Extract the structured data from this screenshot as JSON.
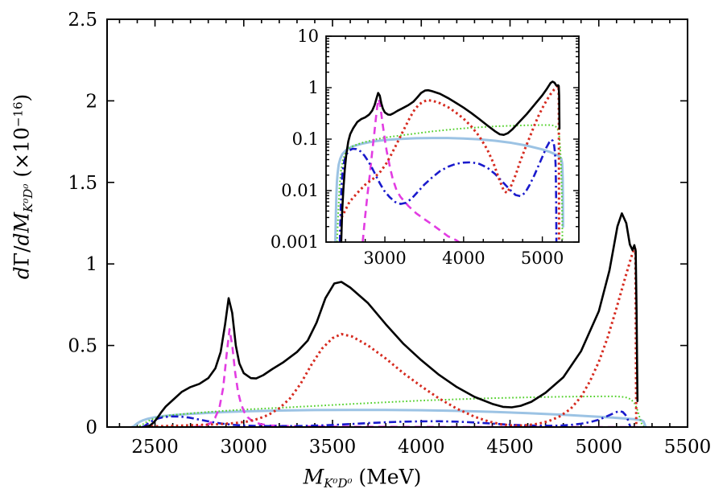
{
  "figure": {
    "background": "#ffffff"
  },
  "labels": {
    "y": {
      "p1": "d",
      "p2": "Γ/",
      "p3": "dM",
      "sub": "K⁰D⁰",
      "p4": " (×10",
      "exp": "−16",
      "p5": ")"
    },
    "x": {
      "p1": "M",
      "sub": "K⁰D⁰",
      "p2": " (MeV)"
    }
  },
  "chart_data": {
    "type": "line",
    "title": "",
    "xlabel": "M_{K0 D0} (MeV)",
    "ylabel": "dGamma/dM_{K0 D0} (x10^-16)",
    "grid": false,
    "legend": "none",
    "main_axis": {
      "xmin": 2230,
      "xmax": 5500,
      "ymin": 0,
      "ymax": 2.5,
      "yscale": "linear",
      "x_minor_step": 100,
      "xticks": [
        {
          "v": 2500,
          "label": "2500"
        },
        {
          "v": 3000,
          "label": "3000"
        },
        {
          "v": 3500,
          "label": "3500"
        },
        {
          "v": 4000,
          "label": "4000"
        },
        {
          "v": 4500,
          "label": "4500"
        },
        {
          "v": 5000,
          "label": "5000"
        },
        {
          "v": 5500,
          "label": "5500"
        }
      ],
      "yticks": [
        {
          "v": 0,
          "label": "0"
        },
        {
          "v": 0.5,
          "label": "0.5"
        },
        {
          "v": 1,
          "label": "1"
        },
        {
          "v": 1.5,
          "label": "1.5"
        },
        {
          "v": 2,
          "label": "2"
        },
        {
          "v": 2.5,
          "label": "2.5"
        }
      ]
    },
    "inset_axis": {
      "xmin": 2253,
      "xmax": 5464,
      "ymin": 0.001,
      "ymax": 10,
      "yscale": "log",
      "x_minor_step": 250,
      "xticks": [
        {
          "v": 3000,
          "label": "3000"
        },
        {
          "v": 4000,
          "label": "4000"
        },
        {
          "v": 5000,
          "label": "5000"
        }
      ],
      "yticks": [
        {
          "v": 0.001,
          "label": "0.001"
        },
        {
          "v": 0.01,
          "label": "0.01"
        },
        {
          "v": 0.1,
          "label": "0.1"
        },
        {
          "v": 1,
          "label": "1"
        },
        {
          "v": 10,
          "label": "10"
        }
      ]
    },
    "series": [
      {
        "name": "lightblue-solid",
        "color": "#9cc3e4",
        "style": "solid",
        "width": 3.0,
        "points": [
          [
            2371,
            0.001
          ],
          [
            2377,
            0.003
          ],
          [
            2384,
            0.008
          ],
          [
            2391,
            0.015
          ],
          [
            2400,
            0.022
          ],
          [
            2414,
            0.032
          ],
          [
            2434,
            0.042
          ],
          [
            2460,
            0.051
          ],
          [
            2500,
            0.06
          ],
          [
            2550,
            0.068
          ],
          [
            2600,
            0.073
          ],
          [
            2700,
            0.081
          ],
          [
            2800,
            0.087
          ],
          [
            2900,
            0.092
          ],
          [
            3000,
            0.096
          ],
          [
            3200,
            0.101
          ],
          [
            3400,
            0.104
          ],
          [
            3600,
            0.105
          ],
          [
            3800,
            0.105
          ],
          [
            4000,
            0.103
          ],
          [
            4200,
            0.099
          ],
          [
            4400,
            0.093
          ],
          [
            4600,
            0.085
          ],
          [
            4800,
            0.075
          ],
          [
            5000,
            0.063
          ],
          [
            5100,
            0.056
          ],
          [
            5200,
            0.048
          ],
          [
            5240,
            0.042
          ],
          [
            5252,
            0.034
          ],
          [
            5258,
            0.018
          ],
          [
            5262,
            0.007
          ],
          [
            5264,
            0.002
          ]
        ]
      },
      {
        "name": "green-dotted",
        "color": "#50d028",
        "style": "finedot",
        "width": 2.0,
        "points": [
          [
            2393,
            0.001
          ],
          [
            2408,
            0.004
          ],
          [
            2424,
            0.012
          ],
          [
            2444,
            0.025
          ],
          [
            2468,
            0.04
          ],
          [
            2500,
            0.054
          ],
          [
            2550,
            0.066
          ],
          [
            2600,
            0.074
          ],
          [
            2700,
            0.084
          ],
          [
            2800,
            0.092
          ],
          [
            2900,
            0.1
          ],
          [
            3000,
            0.107
          ],
          [
            3200,
            0.118
          ],
          [
            3400,
            0.129
          ],
          [
            3600,
            0.141
          ],
          [
            3800,
            0.152
          ],
          [
            4000,
            0.162
          ],
          [
            4200,
            0.17
          ],
          [
            4400,
            0.177
          ],
          [
            4600,
            0.182
          ],
          [
            4800,
            0.186
          ],
          [
            5000,
            0.188
          ],
          [
            5100,
            0.188
          ],
          [
            5150,
            0.183
          ],
          [
            5180,
            0.171
          ],
          [
            5200,
            0.148
          ],
          [
            5215,
            0.112
          ],
          [
            5230,
            0.058
          ],
          [
            5240,
            0.024
          ],
          [
            5248,
            0.008
          ],
          [
            5253,
            0.002
          ],
          [
            5255,
            0.001
          ]
        ]
      },
      {
        "name": "magenta-dashed",
        "color": "#e23ce2",
        "style": "dashed",
        "width": 2.6,
        "points": [
          [
            2718,
            0.001
          ],
          [
            2748,
            0.003
          ],
          [
            2778,
            0.008
          ],
          [
            2808,
            0.02
          ],
          [
            2838,
            0.055
          ],
          [
            2863,
            0.12
          ],
          [
            2884,
            0.24
          ],
          [
            2904,
            0.45
          ],
          [
            2920,
            0.6
          ],
          [
            2936,
            0.49
          ],
          [
            2952,
            0.33
          ],
          [
            2968,
            0.215
          ],
          [
            2984,
            0.145
          ],
          [
            3002,
            0.093
          ],
          [
            3022,
            0.06
          ],
          [
            3044,
            0.04
          ],
          [
            3070,
            0.026
          ],
          [
            3100,
            0.017
          ],
          [
            3150,
            0.01
          ],
          [
            3200,
            0.0075
          ],
          [
            3300,
            0.005
          ],
          [
            3400,
            0.0036
          ],
          [
            3500,
            0.0028
          ],
          [
            3600,
            0.0022
          ],
          [
            3700,
            0.0017
          ],
          [
            3800,
            0.0013
          ],
          [
            3900,
            0.0011
          ],
          [
            4000,
            0.00088
          ],
          [
            4120,
            0.00068
          ],
          [
            4300,
            0.00046
          ],
          [
            4600,
            0.00028
          ],
          [
            5000,
            0.00018
          ],
          [
            5220,
            0.00015
          ]
        ]
      },
      {
        "name": "blue-dashdot",
        "color": "#1a1acc",
        "style": "dashdot",
        "width": 2.6,
        "points": [
          [
            2428,
            0.001
          ],
          [
            2436,
            0.003
          ],
          [
            2444,
            0.008
          ],
          [
            2452,
            0.015
          ],
          [
            2465,
            0.025
          ],
          [
            2485,
            0.038
          ],
          [
            2510,
            0.05
          ],
          [
            2545,
            0.06
          ],
          [
            2590,
            0.065
          ],
          [
            2640,
            0.064
          ],
          [
            2690,
            0.058
          ],
          [
            2740,
            0.048
          ],
          [
            2790,
            0.037
          ],
          [
            2840,
            0.027
          ],
          [
            2890,
            0.019
          ],
          [
            2940,
            0.0135
          ],
          [
            2990,
            0.01
          ],
          [
            3060,
            0.0075
          ],
          [
            3130,
            0.006
          ],
          [
            3200,
            0.0055
          ],
          [
            3270,
            0.0058
          ],
          [
            3340,
            0.007
          ],
          [
            3420,
            0.0095
          ],
          [
            3500,
            0.013
          ],
          [
            3600,
            0.018
          ],
          [
            3700,
            0.024
          ],
          [
            3800,
            0.029
          ],
          [
            3900,
            0.033
          ],
          [
            4000,
            0.035
          ],
          [
            4100,
            0.0355
          ],
          [
            4200,
            0.033
          ],
          [
            4300,
            0.028
          ],
          [
            4400,
            0.021
          ],
          [
            4500,
            0.0145
          ],
          [
            4600,
            0.01
          ],
          [
            4660,
            0.0082
          ],
          [
            4720,
            0.0078
          ],
          [
            4780,
            0.009
          ],
          [
            4840,
            0.013
          ],
          [
            4900,
            0.02
          ],
          [
            4950,
            0.03
          ],
          [
            5000,
            0.045
          ],
          [
            5050,
            0.068
          ],
          [
            5090,
            0.088
          ],
          [
            5115,
            0.098
          ],
          [
            5135,
            0.092
          ],
          [
            5150,
            0.075
          ],
          [
            5160,
            0.055
          ],
          [
            5168,
            0.032
          ],
          [
            5173,
            0.015
          ],
          [
            5176,
            0.006
          ],
          [
            5178,
            0.002
          ],
          [
            5179,
            0.001
          ]
        ]
      },
      {
        "name": "red-dotted",
        "color": "#d62b20",
        "style": "dotted",
        "width": 3.0,
        "points": [
          [
            2450,
            0.003
          ],
          [
            2550,
            0.006
          ],
          [
            2650,
            0.009
          ],
          [
            2750,
            0.013
          ],
          [
            2850,
            0.017
          ],
          [
            2950,
            0.024
          ],
          [
            3020,
            0.034
          ],
          [
            3080,
            0.05
          ],
          [
            3140,
            0.075
          ],
          [
            3200,
            0.115
          ],
          [
            3260,
            0.175
          ],
          [
            3320,
            0.265
          ],
          [
            3380,
            0.38
          ],
          [
            3440,
            0.48
          ],
          [
            3500,
            0.545
          ],
          [
            3550,
            0.57
          ],
          [
            3610,
            0.555
          ],
          [
            3700,
            0.5
          ],
          [
            3800,
            0.42
          ],
          [
            3900,
            0.33
          ],
          [
            4000,
            0.25
          ],
          [
            4100,
            0.175
          ],
          [
            4200,
            0.113
          ],
          [
            4300,
            0.063
          ],
          [
            4380,
            0.034
          ],
          [
            4450,
            0.017
          ],
          [
            4510,
            0.01
          ],
          [
            4550,
            0.009
          ],
          [
            4600,
            0.012
          ],
          [
            4660,
            0.02
          ],
          [
            4720,
            0.037
          ],
          [
            4780,
            0.065
          ],
          [
            4840,
            0.11
          ],
          [
            4900,
            0.185
          ],
          [
            4950,
            0.28
          ],
          [
            5000,
            0.4
          ],
          [
            5050,
            0.55
          ],
          [
            5100,
            0.73
          ],
          [
            5150,
            0.92
          ],
          [
            5180,
            1.03
          ],
          [
            5200,
            1.1
          ],
          [
            5206,
            1.09
          ],
          [
            5209,
            0.5
          ],
          [
            5211,
            0.02
          ],
          [
            5212,
            0.001
          ]
        ]
      },
      {
        "name": "black-solid-total",
        "color": "#000000",
        "style": "solid",
        "width": 2.6,
        "points": [
          [
            2445,
            0.001
          ],
          [
            2458,
            0.004
          ],
          [
            2472,
            0.01
          ],
          [
            2490,
            0.025
          ],
          [
            2510,
            0.05
          ],
          [
            2535,
            0.09
          ],
          [
            2560,
            0.125
          ],
          [
            2600,
            0.165
          ],
          [
            2650,
            0.215
          ],
          [
            2700,
            0.245
          ],
          [
            2750,
            0.265
          ],
          [
            2800,
            0.3
          ],
          [
            2840,
            0.36
          ],
          [
            2870,
            0.46
          ],
          [
            2895,
            0.63
          ],
          [
            2915,
            0.79
          ],
          [
            2935,
            0.7
          ],
          [
            2955,
            0.5
          ],
          [
            2975,
            0.39
          ],
          [
            3000,
            0.33
          ],
          [
            3040,
            0.3
          ],
          [
            3070,
            0.298
          ],
          [
            3110,
            0.318
          ],
          [
            3160,
            0.355
          ],
          [
            3220,
            0.395
          ],
          [
            3300,
            0.46
          ],
          [
            3360,
            0.53
          ],
          [
            3410,
            0.64
          ],
          [
            3460,
            0.79
          ],
          [
            3510,
            0.88
          ],
          [
            3550,
            0.89
          ],
          [
            3600,
            0.855
          ],
          [
            3700,
            0.76
          ],
          [
            3800,
            0.63
          ],
          [
            3900,
            0.51
          ],
          [
            4000,
            0.41
          ],
          [
            4100,
            0.32
          ],
          [
            4200,
            0.245
          ],
          [
            4300,
            0.185
          ],
          [
            4400,
            0.142
          ],
          [
            4460,
            0.124
          ],
          [
            4510,
            0.121
          ],
          [
            4560,
            0.13
          ],
          [
            4620,
            0.155
          ],
          [
            4700,
            0.21
          ],
          [
            4800,
            0.305
          ],
          [
            4900,
            0.465
          ],
          [
            5000,
            0.71
          ],
          [
            5060,
            0.96
          ],
          [
            5105,
            1.23
          ],
          [
            5130,
            1.31
          ],
          [
            5155,
            1.25
          ],
          [
            5175,
            1.12
          ],
          [
            5190,
            1.085
          ],
          [
            5200,
            1.115
          ],
          [
            5208,
            1.08
          ],
          [
            5213,
            0.7
          ],
          [
            5216,
            0.35
          ],
          [
            5218,
            0.16
          ]
        ]
      }
    ]
  }
}
